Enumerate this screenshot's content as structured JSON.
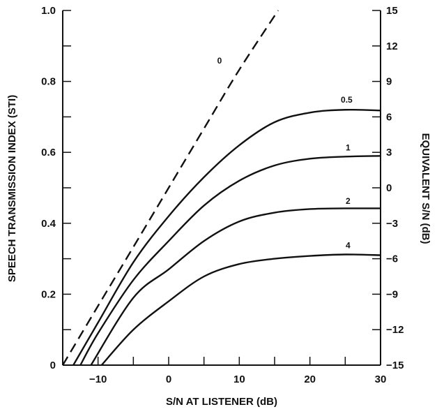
{
  "chart_data": {
    "type": "line",
    "xlabel": "S/N AT LISTENER (dB)",
    "ylabel": "SPEECH TRANSMISSION INDEX (STI)",
    "y2label": "EQUIVALENT S/N (dB)",
    "xlim": [
      -15,
      30
    ],
    "ylim": [
      0,
      1.0
    ],
    "y2lim": [
      -15,
      15
    ],
    "x_tick_labels": [
      "-10",
      "0",
      "10",
      "20",
      "30"
    ],
    "y_tick_labels": [
      "0",
      "0.2",
      "0.4",
      "0.6",
      "0.8",
      "1.0"
    ],
    "y2_tick_labels": [
      "-15",
      "-12",
      "-9",
      "-6",
      "-3",
      "0",
      "3",
      "6",
      "9",
      "12",
      "15"
    ],
    "series": [
      {
        "name": "0",
        "style": "dashed",
        "points": [
          [
            -15,
            0
          ],
          [
            -10,
            0.167
          ],
          [
            -5,
            0.333
          ],
          [
            0,
            0.5
          ],
          [
            5,
            0.667
          ],
          [
            10,
            0.833
          ],
          [
            15.5,
            1.0
          ]
        ]
      },
      {
        "name": "0.5",
        "style": "solid",
        "points": [
          [
            -13.5,
            0
          ],
          [
            -10,
            0.12
          ],
          [
            -5,
            0.29
          ],
          [
            0,
            0.42
          ],
          [
            5,
            0.53
          ],
          [
            10,
            0.62
          ],
          [
            15,
            0.685
          ],
          [
            20,
            0.712
          ],
          [
            25,
            0.72
          ],
          [
            30,
            0.718
          ]
        ]
      },
      {
        "name": "1",
        "style": "solid",
        "points": [
          [
            -12.5,
            0
          ],
          [
            -10,
            0.09
          ],
          [
            -5,
            0.24
          ],
          [
            0,
            0.35
          ],
          [
            5,
            0.45
          ],
          [
            10,
            0.52
          ],
          [
            15,
            0.563
          ],
          [
            20,
            0.582
          ],
          [
            25,
            0.588
          ],
          [
            30,
            0.59
          ]
        ]
      },
      {
        "name": "2",
        "style": "solid",
        "points": [
          [
            -11,
            0
          ],
          [
            -5,
            0.19
          ],
          [
            0,
            0.27
          ],
          [
            5,
            0.35
          ],
          [
            10,
            0.405
          ],
          [
            15,
            0.43
          ],
          [
            20,
            0.44
          ],
          [
            25,
            0.442
          ],
          [
            30,
            0.442
          ]
        ]
      },
      {
        "name": "4",
        "style": "solid",
        "points": [
          [
            -9.5,
            0
          ],
          [
            -5,
            0.1
          ],
          [
            0,
            0.18
          ],
          [
            5,
            0.25
          ],
          [
            10,
            0.285
          ],
          [
            15,
            0.3
          ],
          [
            20,
            0.308
          ],
          [
            25,
            0.312
          ],
          [
            30,
            0.31
          ]
        ]
      }
    ]
  }
}
